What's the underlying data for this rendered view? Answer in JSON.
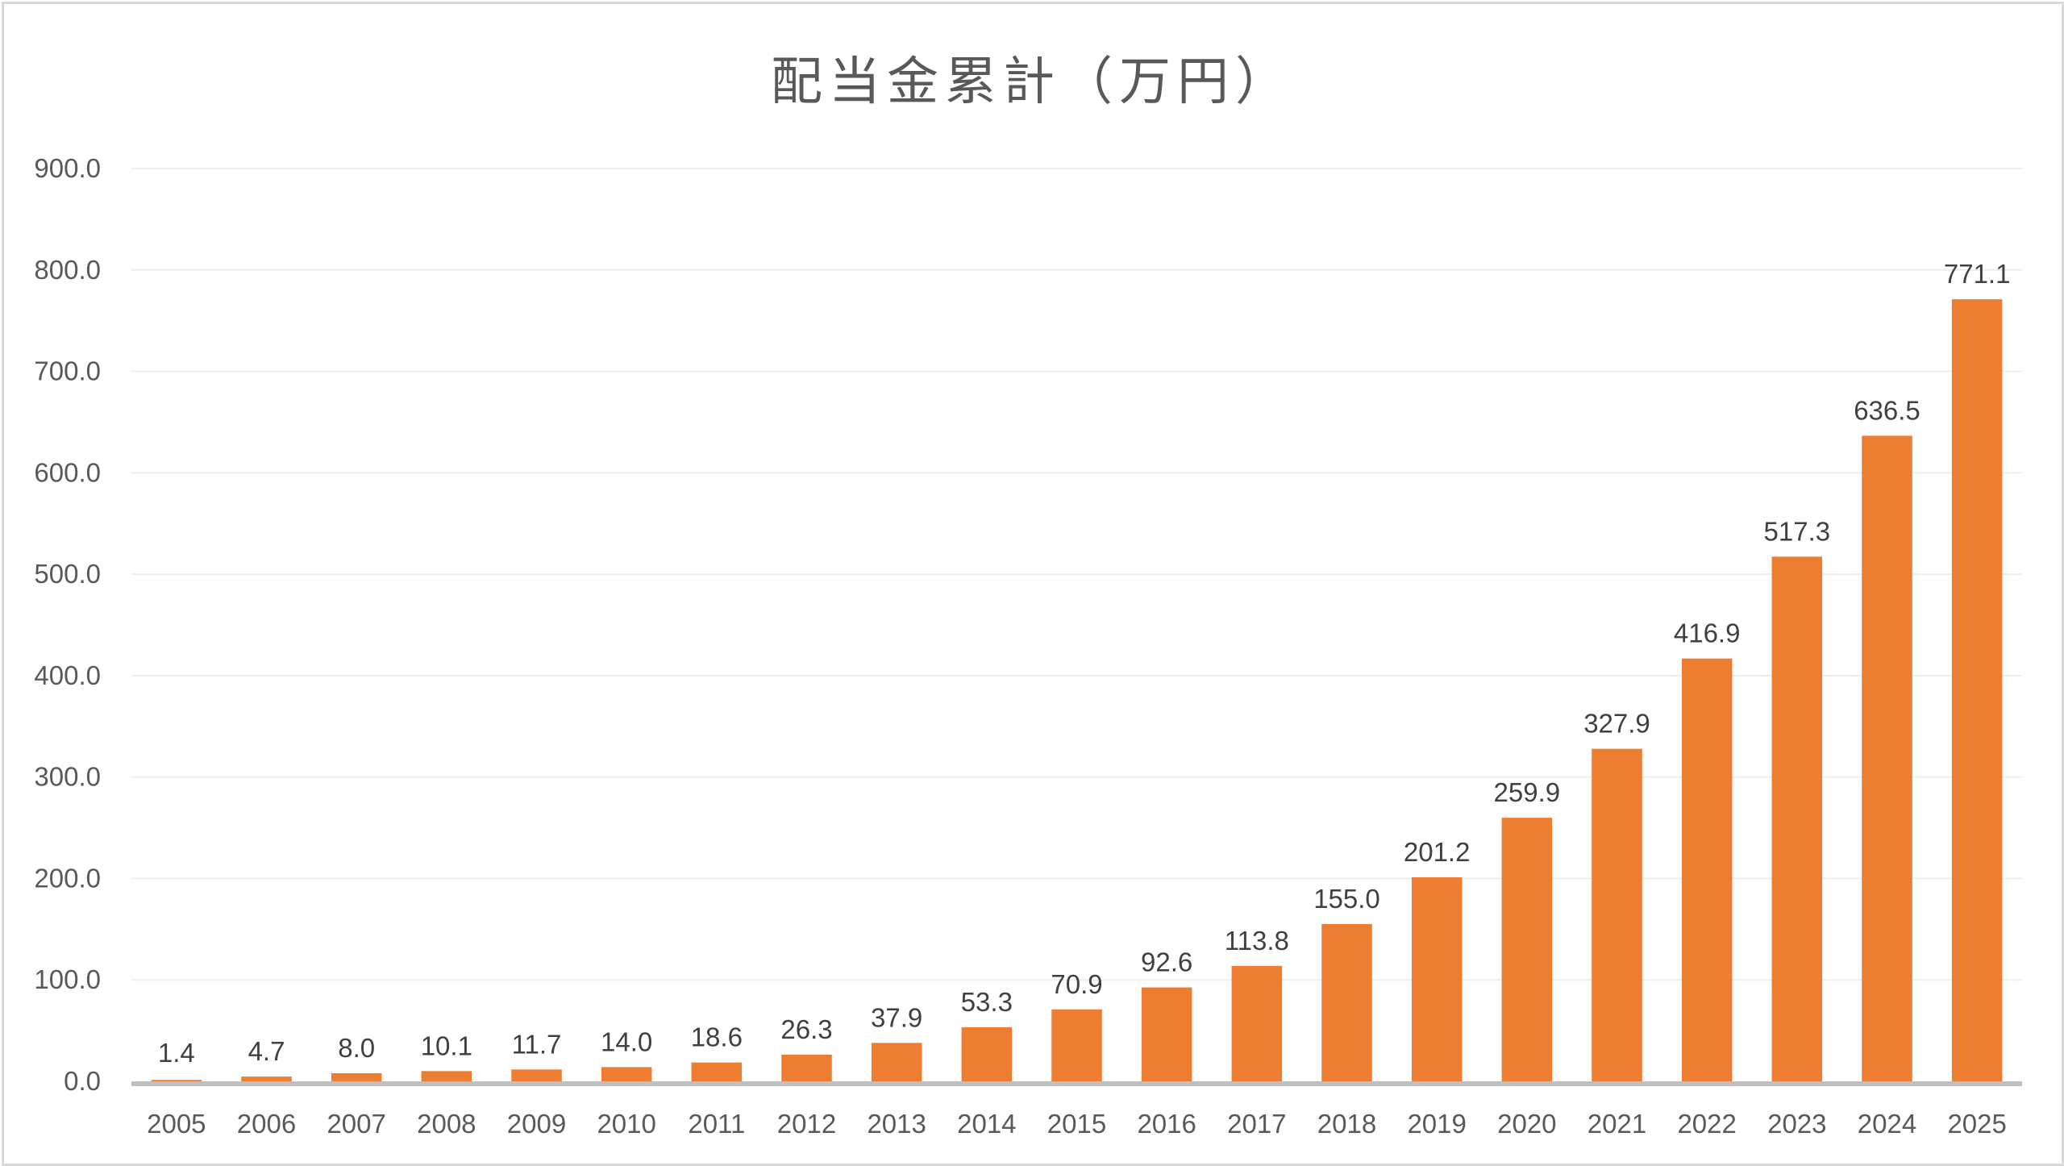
{
  "chart_data": {
    "type": "bar",
    "title": "配当金累計（万円）",
    "xlabel": "",
    "ylabel": "",
    "categories": [
      "2005",
      "2006",
      "2007",
      "2008",
      "2009",
      "2010",
      "2011",
      "2012",
      "2013",
      "2014",
      "2015",
      "2016",
      "2017",
      "2018",
      "2019",
      "2020",
      "2021",
      "2022",
      "2023",
      "2024",
      "2025"
    ],
    "values": [
      1.4,
      4.7,
      8.0,
      10.1,
      11.7,
      14.0,
      18.6,
      26.3,
      37.9,
      53.3,
      70.9,
      92.6,
      113.8,
      155.0,
      201.2,
      259.9,
      327.9,
      416.9,
      517.3,
      636.5,
      771.1
    ],
    "data_labels": [
      "1.4",
      "4.7",
      "8.0",
      "10.1",
      "11.7",
      "14.0",
      "18.6",
      "26.3",
      "37.9",
      "53.3",
      "70.9",
      "92.6",
      "113.8",
      "155.0",
      "201.2",
      "259.9",
      "327.9",
      "416.9",
      "517.3",
      "636.5",
      "771.1"
    ],
    "ylim": [
      0,
      900
    ],
    "yticks": [
      "0.0",
      "100.0",
      "200.0",
      "300.0",
      "400.0",
      "500.0",
      "600.0",
      "700.0",
      "800.0",
      "900.0"
    ],
    "grid": true,
    "legend": "none",
    "colors": {
      "bar": "#ED7D31",
      "grid": "#EDEDED",
      "axis": "#BFBFBF",
      "text": "#595959"
    }
  }
}
